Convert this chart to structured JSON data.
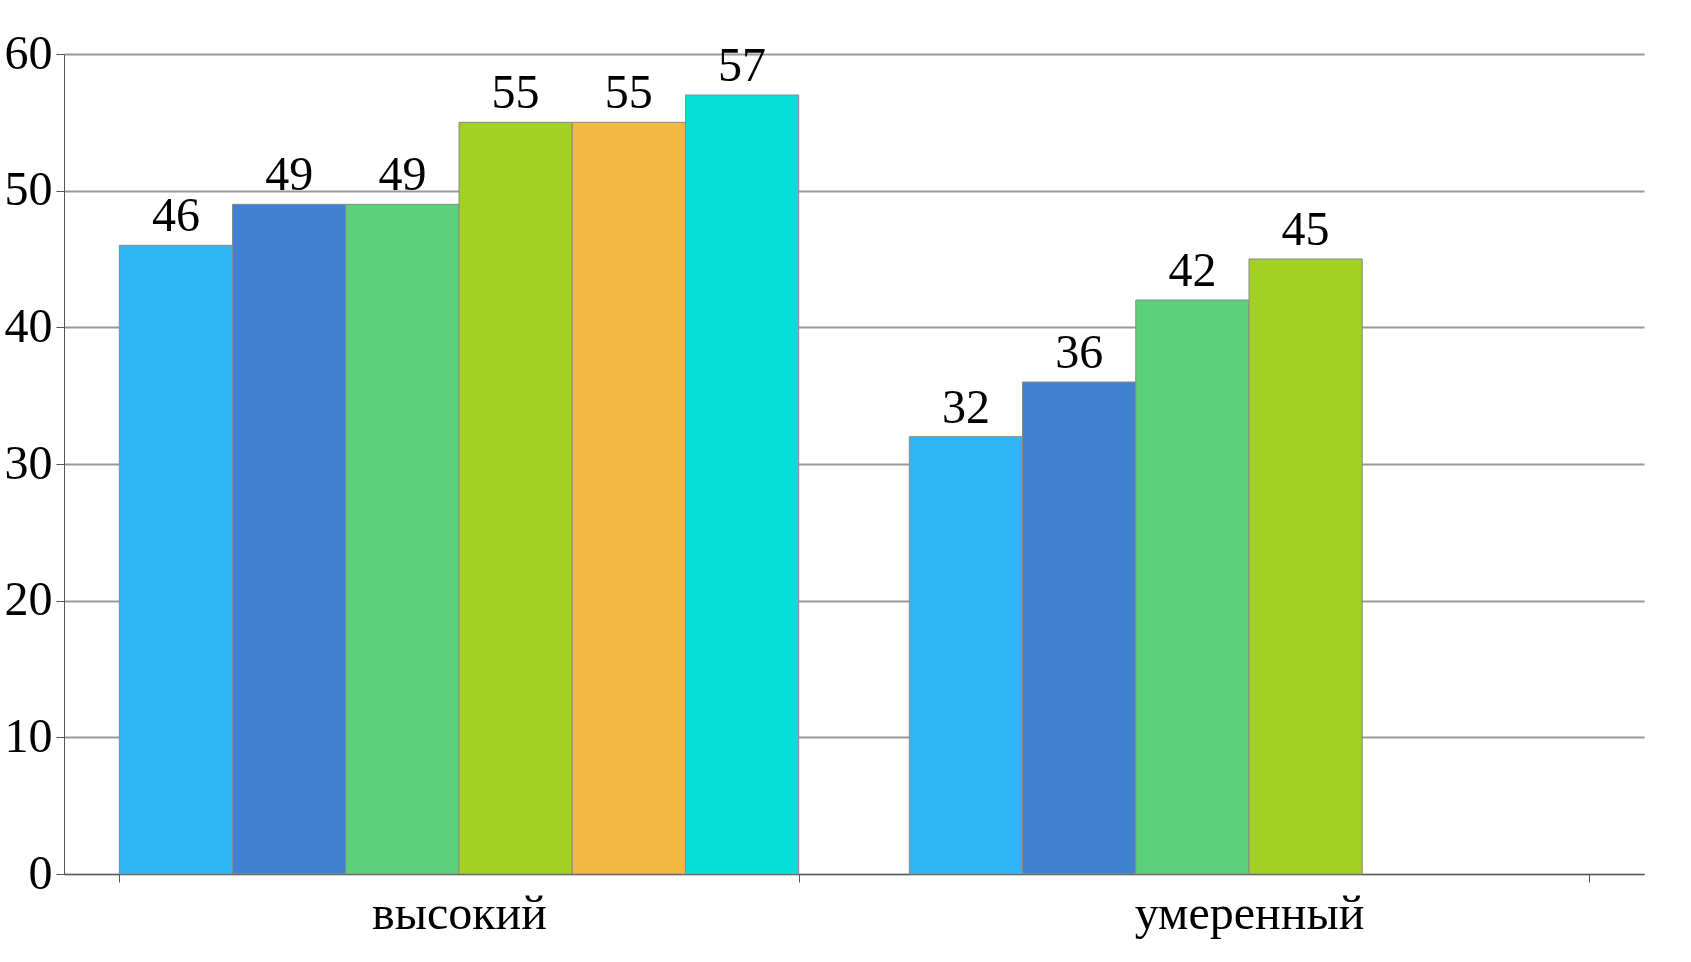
{
  "chart_data": {
    "type": "bar",
    "categories": [
      "высокий",
      "умеренный"
    ],
    "series": [
      {
        "color": "#2eb6f5",
        "values": [
          46,
          32
        ]
      },
      {
        "color": "#4080d0",
        "values": [
          49,
          36
        ]
      },
      {
        "color": "#5ccf7a",
        "values": [
          49,
          42
        ]
      },
      {
        "color": "#a3d025",
        "values": [
          55,
          45
        ]
      },
      {
        "color": "#f2b940",
        "values": [
          55,
          null
        ]
      },
      {
        "color": "#05dfd7",
        "values": [
          57,
          null
        ]
      }
    ],
    "ylim": [
      0,
      60
    ],
    "yticks": [
      0,
      10,
      20,
      30,
      40,
      50,
      60
    ],
    "grid": "y",
    "data_labels": true,
    "legend": false
  }
}
